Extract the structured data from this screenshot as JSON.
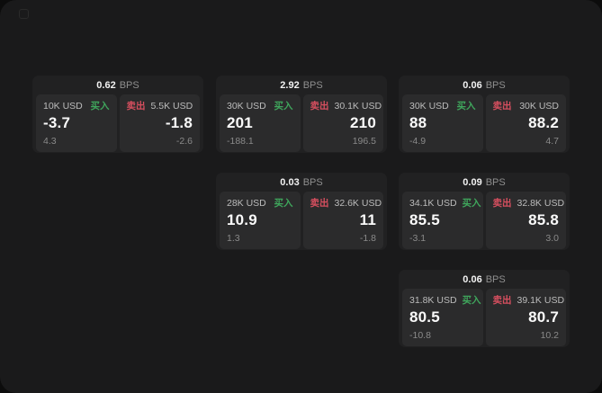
{
  "labels": {
    "bps": "BPS",
    "buy": "买入",
    "sell": "卖出"
  },
  "colors": {
    "buy": "#3fa65c",
    "sell": "#d64f5f"
  },
  "cards": [
    {
      "bps": "0.62",
      "col": 0,
      "row": 0,
      "buy": {
        "size": "10K USD",
        "price": "-3.7",
        "delta": "4.3"
      },
      "sell": {
        "size": "5.5K USD",
        "price": "-1.8",
        "delta": "-2.6"
      }
    },
    {
      "bps": "2.92",
      "col": 1,
      "row": 0,
      "buy": {
        "size": "30K USD",
        "price": "201",
        "delta": "-188.1"
      },
      "sell": {
        "size": "30.1K USD",
        "price": "210",
        "delta": "196.5"
      }
    },
    {
      "bps": "0.06",
      "col": 2,
      "row": 0,
      "buy": {
        "size": "30K USD",
        "price": "88",
        "delta": "-4.9"
      },
      "sell": {
        "size": "30K USD",
        "price": "88.2",
        "delta": "4.7"
      }
    },
    {
      "bps": "0.03",
      "col": 1,
      "row": 1,
      "buy": {
        "size": "28K USD",
        "price": "10.9",
        "delta": "1.3"
      },
      "sell": {
        "size": "32.6K USD",
        "price": "11",
        "delta": "-1.8"
      }
    },
    {
      "bps": "0.09",
      "col": 2,
      "row": 1,
      "buy": {
        "size": "34.1K USD",
        "price": "85.5",
        "delta": "-3.1"
      },
      "sell": {
        "size": "32.8K USD",
        "price": "85.8",
        "delta": "3.0"
      }
    },
    {
      "bps": "0.06",
      "col": 2,
      "row": 2,
      "buy": {
        "size": "31.8K USD",
        "price": "80.5",
        "delta": "-10.8"
      },
      "sell": {
        "size": "39.1K USD",
        "price": "80.7",
        "delta": "10.2"
      }
    }
  ]
}
